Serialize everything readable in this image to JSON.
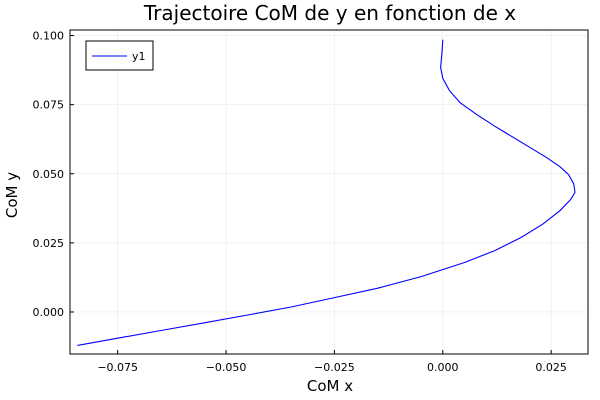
{
  "chart_data": {
    "type": "line",
    "title": "Trajectoire CoM de y en fonction de x",
    "xlabel": "CoM x",
    "ylabel": "CoM y",
    "xlim": [
      -0.086,
      0.0335
    ],
    "ylim": [
      -0.0152,
      0.102
    ],
    "x_ticks": [
      -0.075,
      -0.05,
      -0.025,
      0.0,
      0.025
    ],
    "x_tick_labels": [
      "−0.075",
      "−0.050",
      "−0.025",
      "0.000",
      "0.025"
    ],
    "y_ticks": [
      0.0,
      0.025,
      0.05,
      0.075,
      0.1
    ],
    "y_tick_labels": [
      "0.000",
      "0.025",
      "0.050",
      "0.075",
      "0.100"
    ],
    "grid": true,
    "legend_position": "top-left",
    "series": [
      {
        "name": "y1",
        "color": "#0000ff",
        "x": [
          -0.0843,
          -0.075,
          -0.065,
          -0.055,
          -0.045,
          -0.035,
          -0.025,
          -0.015,
          -0.005,
          0.005,
          0.012,
          0.018,
          0.023,
          0.027,
          0.0295,
          0.0305,
          0.0302,
          0.029,
          0.027,
          0.024,
          0.02,
          0.016,
          0.012,
          0.008,
          0.004,
          0.0015,
          0.0,
          -0.0005,
          -0.0002,
          0.0
        ],
        "y": [
          -0.0121,
          -0.0095,
          -0.0067,
          -0.0039,
          -0.0011,
          0.0018,
          0.0052,
          0.0086,
          0.0128,
          0.0179,
          0.0222,
          0.0269,
          0.0317,
          0.0366,
          0.0407,
          0.0433,
          0.0464,
          0.0497,
          0.0526,
          0.0558,
          0.0596,
          0.0634,
          0.0672,
          0.0712,
          0.0757,
          0.0802,
          0.0845,
          0.0885,
          0.0935,
          0.0985
        ]
      }
    ]
  }
}
